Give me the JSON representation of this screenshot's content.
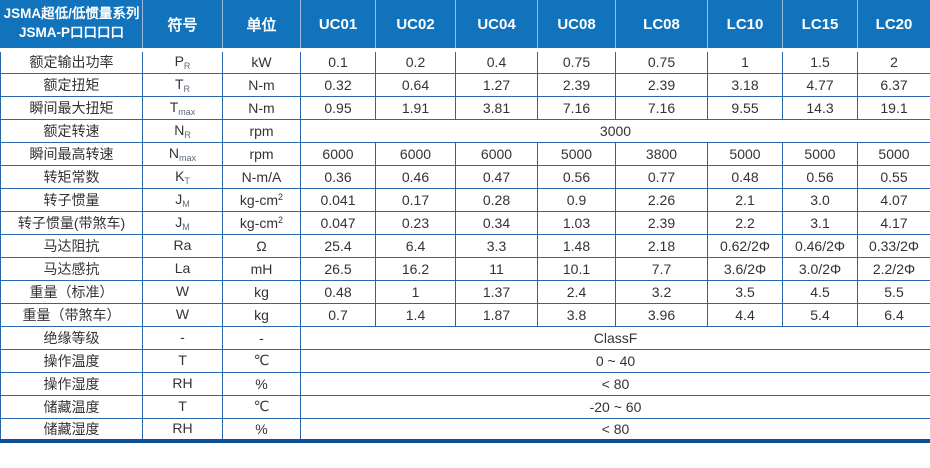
{
  "colors": {
    "header_bg": "#1173bc",
    "header_divider": "#9db9dd",
    "grid": "#2a66ae",
    "outer_bottom": "#0d4f96",
    "body_text": "#333333",
    "header_text": "#ffffff"
  },
  "table": {
    "title_line1": "JSMA超低/低惯量系列",
    "title_line2": "JSMA-P口口口口",
    "header": {
      "symbol": "符号",
      "unit": "单位",
      "models": [
        "UC01",
        "UC02",
        "UC04",
        "UC08",
        "LC08",
        "LC10",
        "LC15",
        "LC20"
      ]
    },
    "rows": [
      {
        "label": "额定输出功率",
        "sym": "P",
        "sub": "R",
        "unit": "kW",
        "usup": "",
        "values": [
          "0.1",
          "0.2",
          "0.4",
          "0.75",
          "0.75",
          "1",
          "1.5",
          "2"
        ]
      },
      {
        "label": "额定扭矩",
        "sym": "T",
        "sub": "R",
        "unit": "N-m",
        "usup": "",
        "values": [
          "0.32",
          "0.64",
          "1.27",
          "2.39",
          "2.39",
          "3.18",
          "4.77",
          "6.37"
        ]
      },
      {
        "label": "瞬间最大扭矩",
        "sym": "T",
        "sub": "max",
        "unit": "N-m",
        "usup": "",
        "values": [
          "0.95",
          "1.91",
          "3.81",
          "7.16",
          "7.16",
          "9.55",
          "14.3",
          "19.1"
        ]
      },
      {
        "label": "额定转速",
        "sym": "N",
        "sub": "R",
        "unit": "rpm",
        "usup": "",
        "merged": "3000"
      },
      {
        "label": "瞬间最高转速",
        "sym": "N",
        "sub": "max",
        "unit": "rpm",
        "usup": "",
        "values": [
          "6000",
          "6000",
          "6000",
          "5000",
          "3800",
          "5000",
          "5000",
          "5000"
        ]
      },
      {
        "label": "转矩常数",
        "sym": "K",
        "sub": "T",
        "unit": "N-m/A",
        "usup": "",
        "values": [
          "0.36",
          "0.46",
          "0.47",
          "0.56",
          "0.77",
          "0.48",
          "0.56",
          "0.55"
        ]
      },
      {
        "label": "转子惯量",
        "sym": "J",
        "sub": "M",
        "unit": "kg-cm",
        "usup": "2",
        "values": [
          "0.041",
          "0.17",
          "0.28",
          "0.9",
          "2.26",
          "2.1",
          "3.0",
          "4.07"
        ]
      },
      {
        "label": "转子惯量(带煞车)",
        "sym": "J",
        "sub": "M",
        "unit": "kg-cm",
        "usup": "2",
        "values": [
          "0.047",
          "0.23",
          "0.34",
          "1.03",
          "2.39",
          "2.2",
          "3.1",
          "4.17"
        ]
      },
      {
        "label": "马达阻抗",
        "sym": "Ra",
        "sub": "",
        "unit": "Ω",
        "usup": "",
        "values": [
          "25.4",
          "6.4",
          "3.3",
          "1.48",
          "2.18",
          "0.62/2Φ",
          "0.46/2Φ",
          "0.33/2Φ"
        ]
      },
      {
        "label": "马达感抗",
        "sym": "La",
        "sub": "",
        "unit": "mH",
        "usup": "",
        "values": [
          "26.5",
          "16.2",
          "11",
          "10.1",
          "7.7",
          "3.6/2Φ",
          "3.0/2Φ",
          "2.2/2Φ"
        ]
      },
      {
        "label": "重量（标准）",
        "sym": "W",
        "sub": "",
        "unit": "kg",
        "usup": "",
        "values": [
          "0.48",
          "1",
          "1.37",
          "2.4",
          "3.2",
          "3.5",
          "4.5",
          "5.5"
        ]
      },
      {
        "label": "重量（带煞车）",
        "sym": "W",
        "sub": "",
        "unit": "kg",
        "usup": "",
        "values": [
          "0.7",
          "1.4",
          "1.87",
          "3.8",
          "3.96",
          "4.4",
          "5.4",
          "6.4"
        ]
      },
      {
        "label": "绝缘等级",
        "sym": "-",
        "sub": "",
        "unit": "-",
        "usup": "",
        "merged": "ClassF"
      },
      {
        "label": "操作温度",
        "sym": "T",
        "sub": "",
        "unit": "℃",
        "usup": "",
        "merged": "0 ~ 40"
      },
      {
        "label": "操作湿度",
        "sym": "RH",
        "sub": "",
        "unit": "%",
        "usup": "",
        "merged": "< 80"
      },
      {
        "label": "储藏温度",
        "sym": "T",
        "sub": "",
        "unit": "℃",
        "usup": "",
        "merged": "-20 ~ 60"
      },
      {
        "label": "储藏湿度",
        "sym": "RH",
        "sub": "",
        "unit": "%",
        "usup": "",
        "merged": "< 80"
      }
    ]
  }
}
